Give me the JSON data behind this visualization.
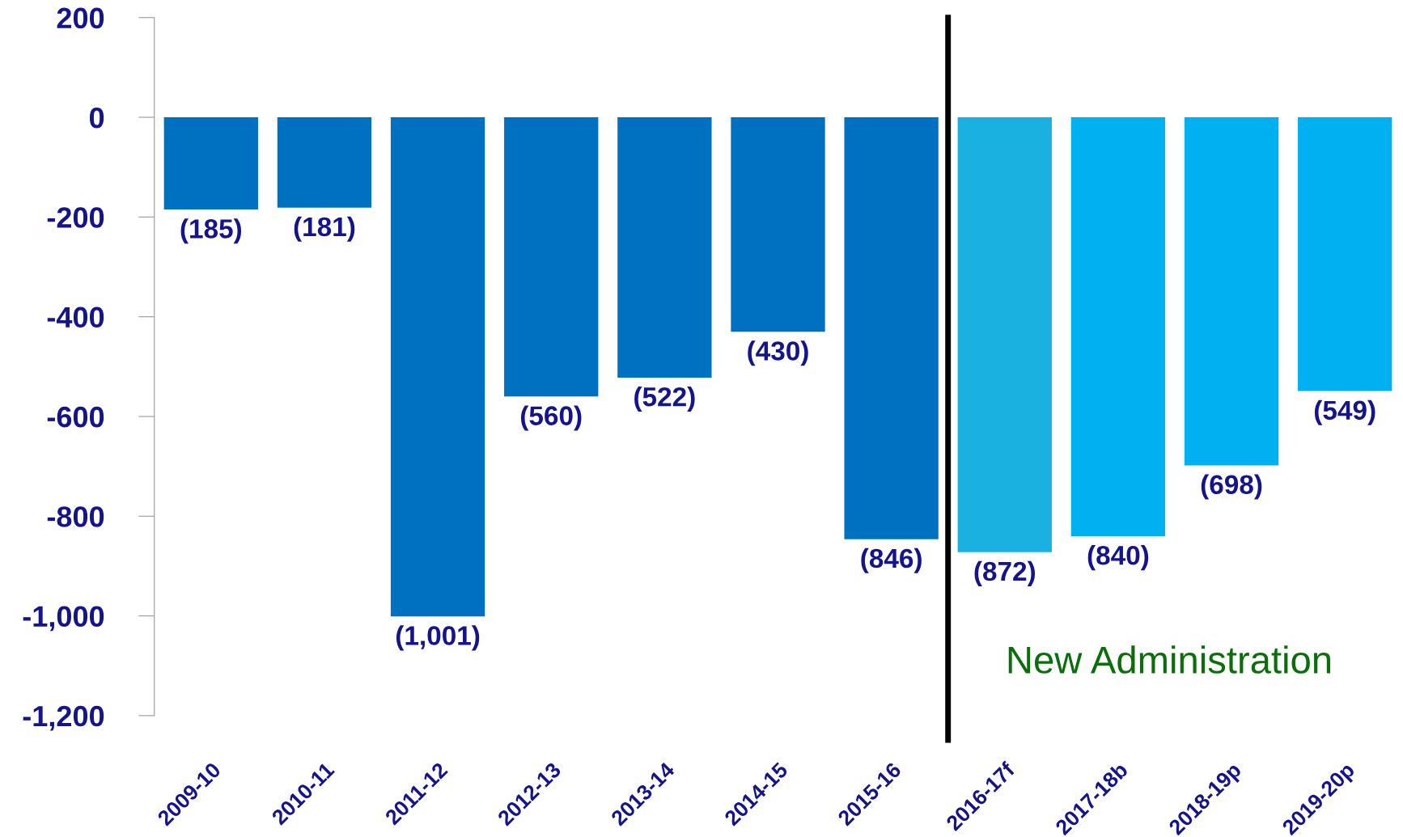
{
  "chart_data": {
    "type": "bar",
    "categories": [
      "2009-10",
      "2010-11",
      "2011-12",
      "2012-13",
      "2013-14",
      "2014-15",
      "2015-16",
      "2016-17f",
      "2017-18b",
      "2018-19p",
      "2019-20p"
    ],
    "values": [
      -185,
      -181,
      -1001,
      -560,
      -522,
      -430,
      -846,
      -872,
      -840,
      -698,
      -549
    ],
    "colors": [
      "#0070c0",
      "#0070c0",
      "#0070c0",
      "#0070c0",
      "#0070c0",
      "#0070c0",
      "#0070c0",
      "#1ab0e0",
      "#00b0f0",
      "#00b0f0",
      "#00b0f0"
    ],
    "value_labels": [
      "(185)",
      "(181)",
      "(1,001)",
      "(560)",
      "(522)",
      "(430)",
      "(846)",
      "(872)",
      "(840)",
      "(698)",
      "(549)"
    ],
    "ylim": [
      -1200,
      200
    ],
    "yticks": [
      200,
      0,
      {
        "value": -200,
        "label": "-200"
      },
      {
        "value": -400,
        "label": "-400"
      },
      {
        "value": -600,
        "label": "-600"
      },
      {
        "value": -800,
        "label": "-800"
      },
      {
        "value": -1000,
        "label": "-1,000"
      },
      {
        "value": -1200,
        "label": "-1,200"
      }
    ],
    "annotations": [
      "New Administration"
    ],
    "grid": false,
    "legend": false
  }
}
